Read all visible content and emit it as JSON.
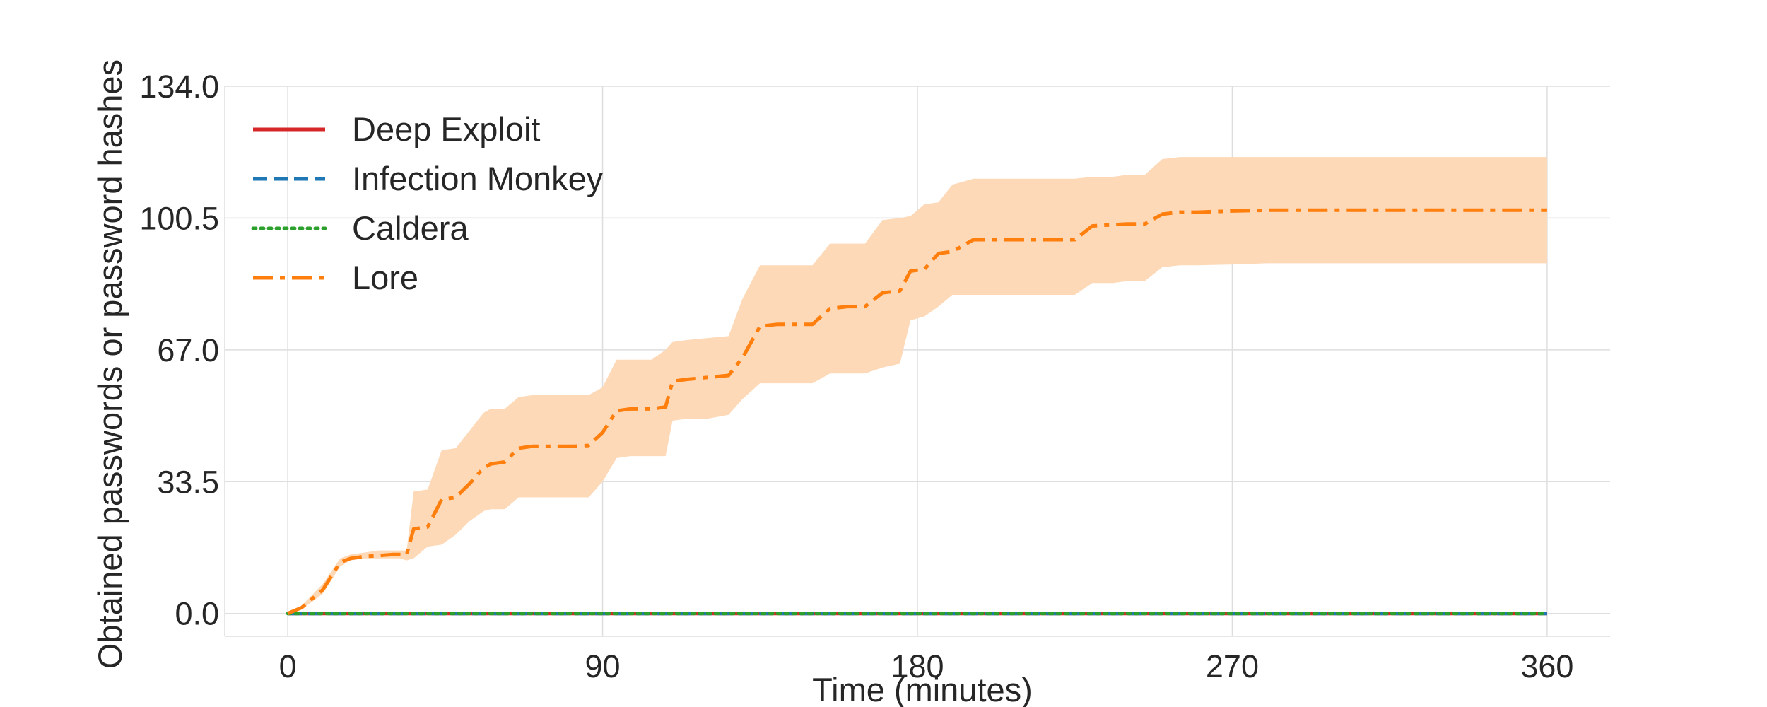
{
  "chart_data": {
    "type": "line",
    "title": "",
    "xlabel": "Time (minutes)",
    "ylabel": "Obtained passwords or password hashes",
    "xlim": [
      -18,
      378
    ],
    "ylim": [
      -5.8,
      134
    ],
    "xticks": [
      0,
      90,
      180,
      270,
      360
    ],
    "yticks": [
      0.0,
      33.5,
      67.0,
      100.5,
      134.0
    ],
    "xtick_labels": [
      "0",
      "90",
      "180",
      "270",
      "360"
    ],
    "ytick_labels": [
      "0.0",
      "33.5",
      "67.0",
      "100.5",
      "134.0"
    ],
    "grid": true,
    "legend_position": "upper-left",
    "series": [
      {
        "name": "Deep Exploit",
        "color": "#d62728",
        "dash": "solid",
        "x": [
          0,
          360
        ],
        "y": [
          0,
          0
        ]
      },
      {
        "name": "Infection Monkey",
        "color": "#1f77b4",
        "dash": "dashed",
        "x": [
          0,
          360
        ],
        "y": [
          0,
          0
        ]
      },
      {
        "name": "Caldera",
        "color": "#2ca02c",
        "dash": "dotted",
        "x": [
          0,
          360
        ],
        "y": [
          0,
          0
        ]
      },
      {
        "name": "Lore",
        "color": "#ff7f0e",
        "dash": "dashdot",
        "band_color": "#fdd9b8",
        "x": [
          0,
          4,
          10,
          15,
          18,
          22,
          26,
          30,
          32,
          34,
          36,
          40,
          44,
          48,
          52,
          56,
          58,
          62,
          66,
          70,
          74,
          78,
          82,
          86,
          90,
          94,
          98,
          104,
          108,
          110,
          114,
          120,
          126,
          130,
          135,
          140,
          145,
          150,
          155,
          160,
          165,
          170,
          175,
          178,
          182,
          186,
          190,
          196,
          200,
          210,
          220,
          225,
          230,
          236,
          240,
          245,
          250,
          255,
          260,
          270,
          280,
          300,
          320,
          340,
          360
        ],
        "y": [
          0,
          1.5,
          6,
          13,
          14,
          14.5,
          14.7,
          15,
          15,
          15,
          21.5,
          22,
          29,
          29.5,
          33,
          37,
          38,
          38.5,
          42,
          42.5,
          42.5,
          42.5,
          42.5,
          42.7,
          46,
          51.5,
          52,
          52,
          52.5,
          59,
          59.5,
          60,
          60.5,
          65,
          73,
          73.5,
          73.5,
          73.5,
          77.5,
          78,
          78,
          81.5,
          82,
          87,
          87.5,
          91.5,
          92,
          95,
          95,
          95,
          95,
          95,
          98.5,
          98.8,
          99,
          99,
          101.5,
          102,
          102,
          102.3,
          102.5,
          102.5,
          102.5,
          102.5,
          102.5
        ],
        "lower": [
          0,
          1,
          5,
          12,
          13.5,
          14,
          14,
          14,
          14,
          13.5,
          14,
          17,
          17.5,
          20,
          23.5,
          26,
          26.5,
          26.5,
          29.5,
          29.5,
          29.5,
          29.5,
          29.5,
          29.5,
          33.5,
          39.5,
          40,
          40,
          40,
          49,
          49.5,
          49.5,
          50.5,
          54.5,
          58.5,
          58.5,
          58.5,
          58.5,
          61,
          61,
          61,
          62.5,
          63.5,
          74.5,
          75.5,
          78,
          81,
          81,
          81,
          81,
          81,
          81,
          84,
          84,
          84.5,
          84.5,
          88,
          88.5,
          88.5,
          88.7,
          89,
          89,
          89,
          89,
          89
        ],
        "upper": [
          0,
          2,
          7.5,
          14,
          15,
          15.5,
          16,
          16,
          16,
          16,
          31,
          31.5,
          41.5,
          42,
          46.5,
          51,
          52,
          52,
          55,
          55.5,
          55.5,
          55.5,
          55.5,
          55.5,
          57.5,
          64.5,
          64.5,
          64.5,
          67,
          69,
          69.5,
          70,
          70.5,
          80,
          88.5,
          88.5,
          88.5,
          88.5,
          94,
          94,
          94,
          100,
          100.5,
          101,
          104,
          104.5,
          109,
          110.5,
          110.5,
          110.5,
          110.5,
          110.5,
          111,
          111,
          111.5,
          111.5,
          115.5,
          116,
          116,
          116,
          116,
          116,
          116,
          116,
          116
        ]
      }
    ]
  }
}
